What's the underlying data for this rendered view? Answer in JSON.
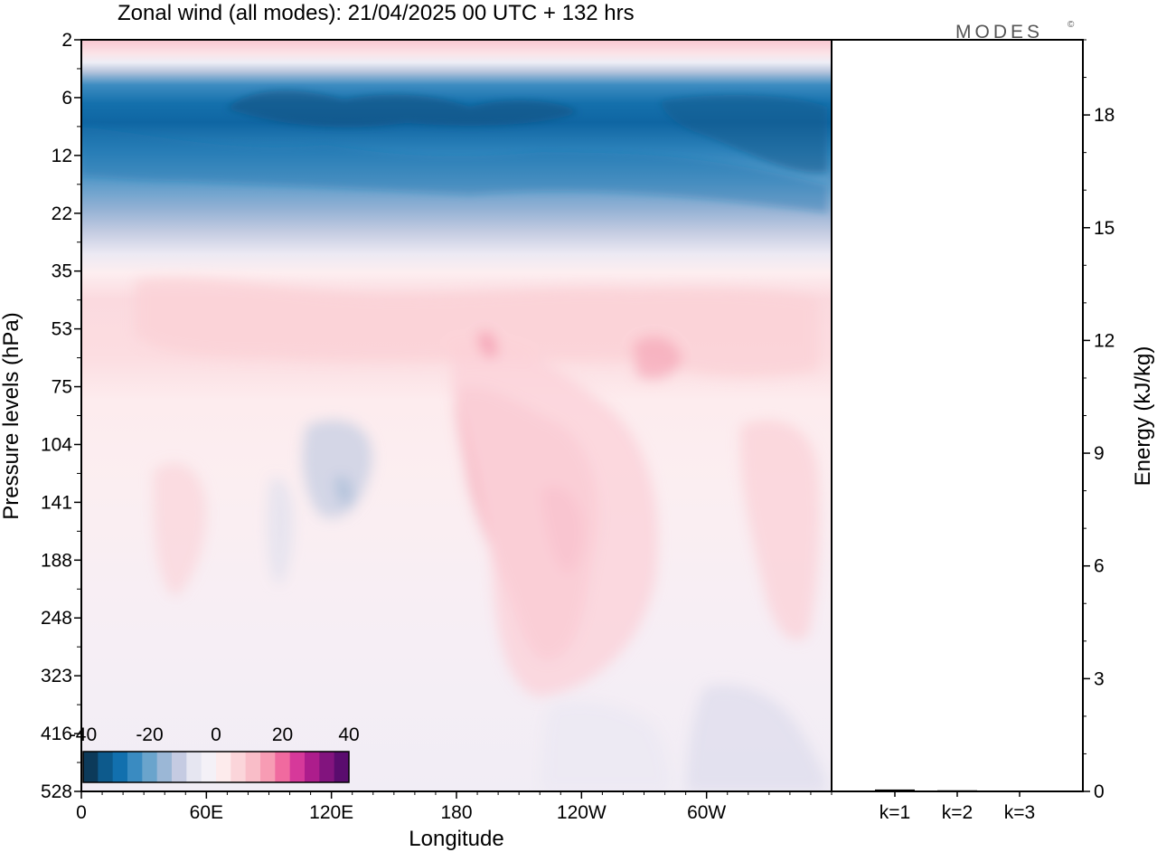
{
  "title": "Zonal wind (all modes):  21/04/2025  00 UTC  + 132 hrs",
  "brand": "MODES",
  "brand_mark": "©",
  "chart_data": [
    {
      "type": "heatmap",
      "title": "Zonal wind (all modes):  21/04/2025  00 UTC  + 132 hrs",
      "xlabel": "Longitude",
      "ylabel": "Pressure levels (hPa)",
      "x_ticks": [
        "0",
        "60E",
        "120E",
        "180",
        "120W",
        "60W"
      ],
      "y_ticks": [
        "2",
        "6",
        "12",
        "22",
        "35",
        "53",
        "75",
        "104",
        "141",
        "188",
        "248",
        "323",
        "416",
        "528"
      ],
      "xlim_deg_east": [
        0,
        360
      ],
      "grid": false,
      "colorbar": {
        "placement": "bottom-left",
        "range": [
          -40,
          40
        ],
        "tick_labels": [
          "-40",
          "-20",
          "0",
          "20",
          "40"
        ],
        "colors": [
          "#0c3a5a",
          "#0d5a8c",
          "#1270ae",
          "#3a8bc1",
          "#6aa4cc",
          "#9bb7d6",
          "#c5cbe2",
          "#e6e6f1",
          "#f4f1f7",
          "#fdebec",
          "#fbd5da",
          "#f9bdc8",
          "#f79cb4",
          "#f06a9f",
          "#d6399a",
          "#ad1d8c",
          "#82147e",
          "#5a0c6e"
        ]
      },
      "field_description_by_level": [
        {
          "level": 2,
          "zonal_wind_ms": 10
        },
        {
          "level": 4,
          "zonal_wind_ms": -10
        },
        {
          "level": 6,
          "zonal_wind_ms": -35
        },
        {
          "level": 12,
          "zonal_wind_ms": -25
        },
        {
          "level": 22,
          "zonal_wind_ms": -12
        },
        {
          "level": 35,
          "zonal_wind_ms": 2
        },
        {
          "level": 53,
          "zonal_wind_ms": 6
        },
        {
          "level": 75,
          "zonal_wind_ms": 3
        },
        {
          "level": 104,
          "zonal_wind_ms": 2
        },
        {
          "level": 141,
          "zonal_wind_ms": 3
        },
        {
          "level": 188,
          "zonal_wind_ms": 3
        },
        {
          "level": 248,
          "zonal_wind_ms": 2
        },
        {
          "level": 323,
          "zonal_wind_ms": 1
        },
        {
          "level": 416,
          "zonal_wind_ms": 0
        },
        {
          "level": 528,
          "zonal_wind_ms": 0
        }
      ]
    },
    {
      "type": "bar",
      "categories": [
        "k=1",
        "k=2",
        "k=3"
      ],
      "values": [
        0.05,
        0.03,
        0.02
      ],
      "ylabel": "Energy (kJ/kg)",
      "ylim": [
        0,
        20
      ],
      "y_ticks": [
        "0",
        "3",
        "6",
        "9",
        "12",
        "15",
        "18"
      ],
      "y_tick_values": [
        0,
        3,
        6,
        9,
        12,
        15,
        18
      ],
      "axis_side": "right"
    }
  ]
}
